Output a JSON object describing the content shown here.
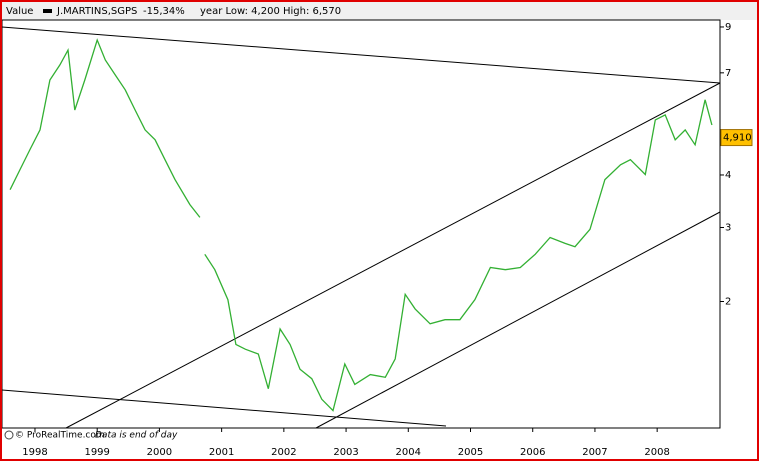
{
  "chart_data": {
    "type": "line",
    "header": {
      "label": "Value",
      "name": "J.MARTINS,SGPS",
      "change": "-15,34%",
      "range": "year Low: 4,200 High: 6,570"
    },
    "footer": {
      "source": "© ProRealTime.com",
      "note": "Data is end of day"
    },
    "log_scale": true,
    "last_value": {
      "value": 4.91,
      "label": "4,910"
    },
    "xlim": [
      1997.47,
      2009.01
    ],
    "xticks": [
      1998,
      1999,
      2000,
      2001,
      2002,
      2003,
      2004,
      2005,
      2006,
      2007,
      2008
    ],
    "ylim": [
      1.0,
      9.35
    ],
    "yticks": [
      2,
      3,
      4,
      7,
      9
    ],
    "x": [
      1997.6,
      1997.76,
      1997.92,
      1998.08,
      1998.24,
      1998.4,
      1998.53,
      1998.64,
      1998.8,
      1999.0,
      1999.13,
      1999.29,
      1999.45,
      1999.61,
      1999.77,
      1999.93,
      2000.09,
      2000.25,
      2000.49,
      2000.65,
      2000.69,
      2000.73,
      2000.89,
      2001.1,
      2001.23,
      2001.38,
      2001.59,
      2001.75,
      2001.94,
      2002.1,
      2002.26,
      2002.45,
      2002.61,
      2002.79,
      2002.98,
      2003.14,
      2003.39,
      2003.63,
      2003.79,
      2003.95,
      2004.11,
      2004.35,
      2004.59,
      2004.83,
      2005.07,
      2005.32,
      2005.56,
      2005.8,
      2006.04,
      2006.28,
      2006.52,
      2006.68,
      2006.92,
      2007.16,
      2007.41,
      2007.57,
      2007.81,
      2007.97,
      2008.13,
      2008.29,
      2008.45,
      2008.61,
      2008.77,
      2008.88
    ],
    "series": [
      {
        "name": "J.MARTINS,SGPS",
        "color": "#33b033",
        "values": [
          3.69,
          4.12,
          4.6,
          5.12,
          6.73,
          7.31,
          7.93,
          5.71,
          6.73,
          8.38,
          7.51,
          6.92,
          6.38,
          5.71,
          5.12,
          4.85,
          4.35,
          3.9,
          3.4,
          3.17,
          null,
          2.59,
          2.38,
          2.02,
          1.58,
          1.54,
          1.5,
          1.24,
          1.72,
          1.58,
          1.38,
          1.31,
          1.17,
          1.1,
          1.42,
          1.27,
          1.34,
          1.32,
          1.46,
          2.08,
          1.92,
          1.77,
          1.81,
          1.81,
          2.02,
          2.41,
          2.38,
          2.41,
          2.59,
          2.84,
          2.75,
          2.7,
          2.97,
          3.9,
          4.23,
          4.35,
          4.01,
          5.41,
          5.56,
          4.85,
          5.12,
          4.72,
          6.04,
          5.26
        ]
      }
    ]
  }
}
